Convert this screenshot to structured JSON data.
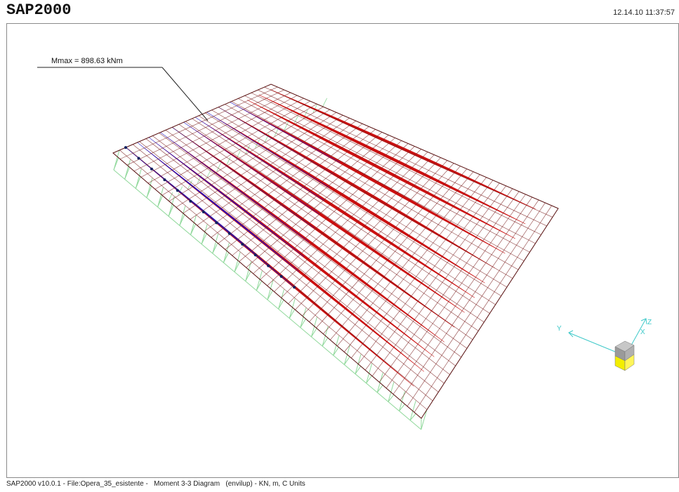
{
  "app": {
    "title": "SAP2000",
    "timestamp": "12.14.10 11:37:57"
  },
  "viewport": {
    "annotation": "Mmax = 898.63 kNm",
    "axes": {
      "y_label": "Y",
      "z_label": "Z",
      "x_label": "X"
    },
    "colors": {
      "mesh": "#7a1f1f",
      "moment_positive": "#cc1010",
      "moment_negative": "#1a10c8",
      "supports": "#8fd89a",
      "axis": "#3fc9c9",
      "cube_top": "#b5b5b5",
      "cube_bottom": "#f5f000"
    }
  },
  "status_bar": {
    "text": "SAP2000 v10.0.1 - File:Opera_35_esistente -   Moment 3-3 Diagram   (envilup) - KN, m, C Units"
  }
}
